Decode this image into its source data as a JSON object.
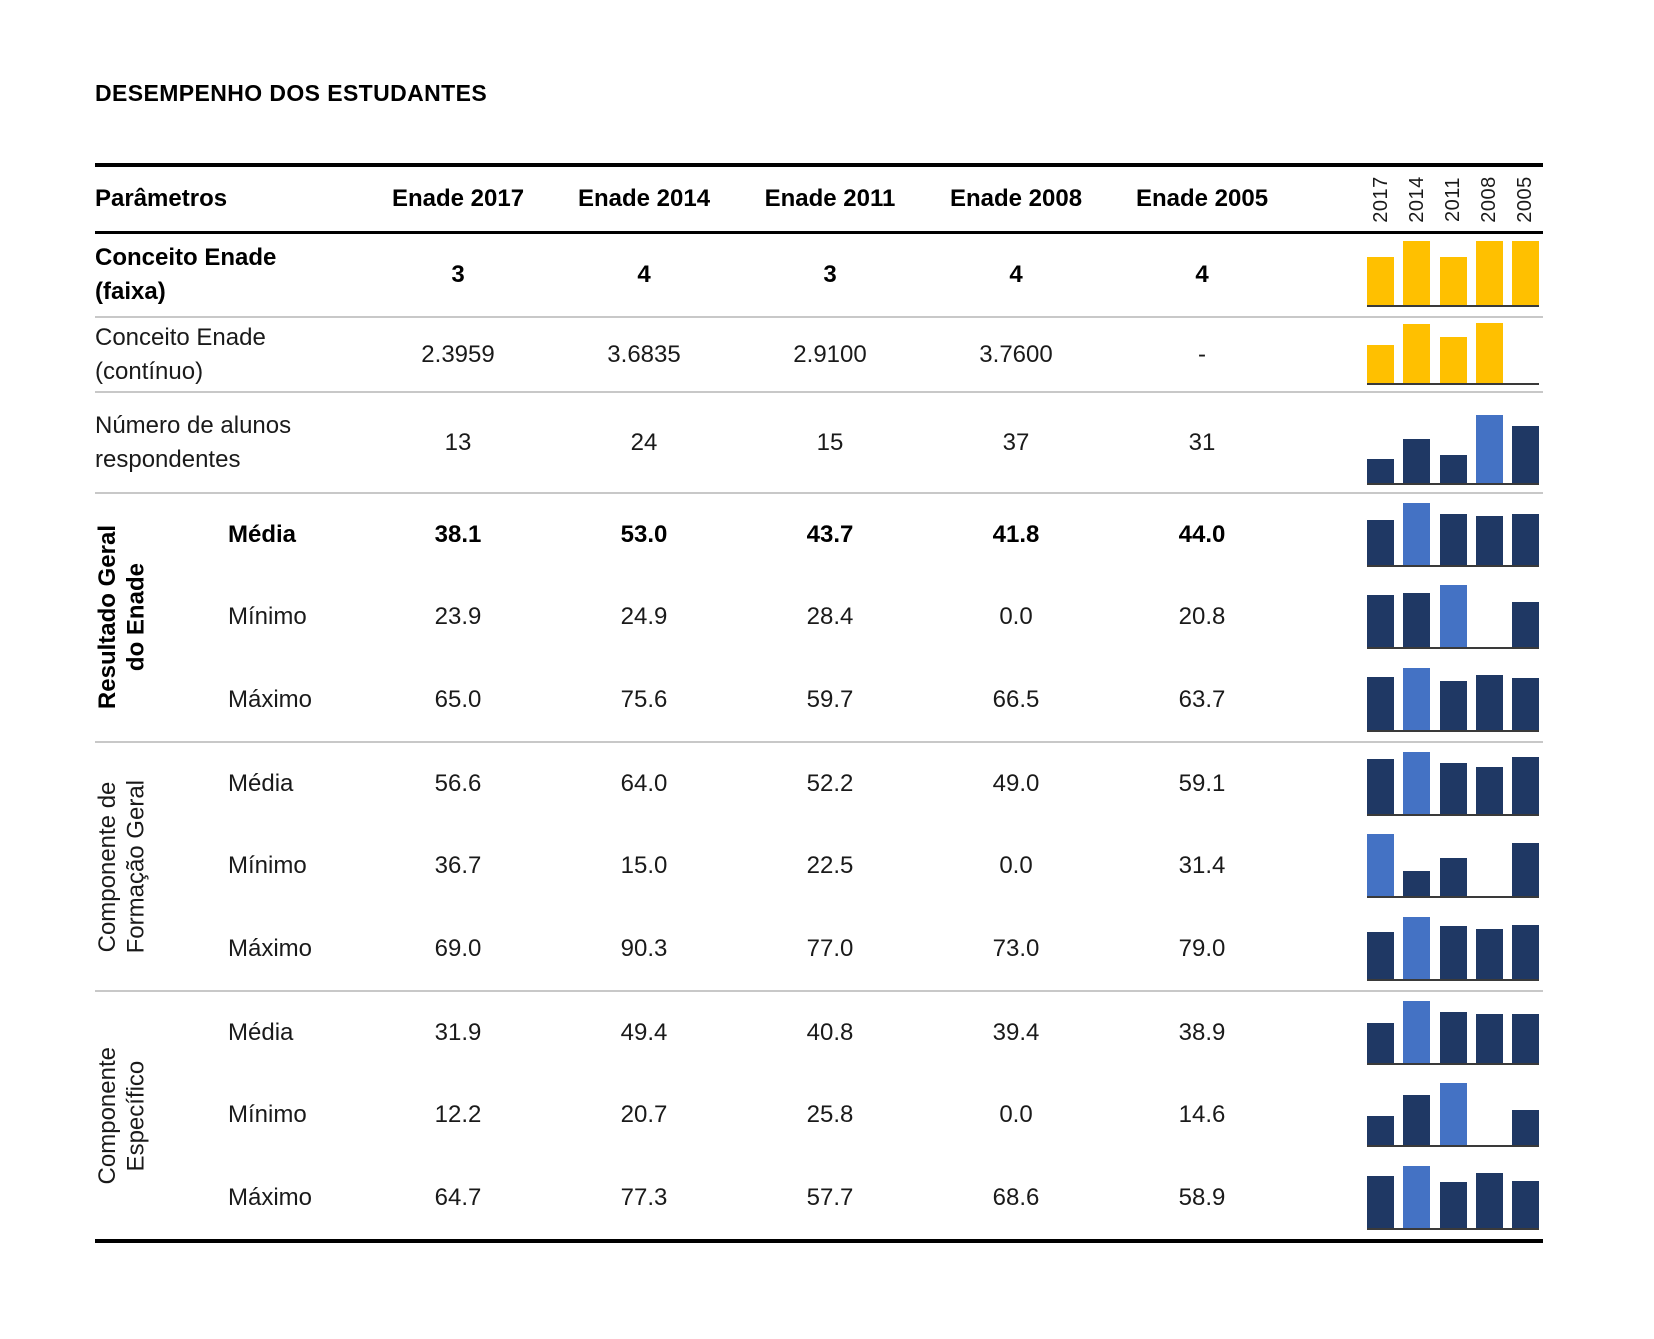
{
  "page_title": "DESEMPENHO DOS ESTUDANTES",
  "colors": {
    "gold": "#FFC000",
    "navy": "#1F3864",
    "highlight": "#4472C4",
    "axis": "#3a3a3a"
  },
  "header": {
    "params_label": "Parâmetros",
    "columns": [
      "Enade 2017",
      "Enade 2014",
      "Enade 2011",
      "Enade 2008",
      "Enade 2005"
    ],
    "spark_years": [
      "2017",
      "2014",
      "2011",
      "2008",
      "2005"
    ]
  },
  "rows": {
    "faixa": {
      "label": "Conceito Enade\n(faixa)",
      "values": [
        "3",
        "4",
        "3",
        "4",
        "4"
      ],
      "spark": {
        "values": [
          3,
          4,
          3,
          4,
          4
        ],
        "scheme": "gold"
      }
    },
    "continuo": {
      "label": "Conceito Enade\n(contínuo)",
      "values": [
        "2.3959",
        "3.6835",
        "2.9100",
        "3.7600",
        "-"
      ],
      "spark": {
        "values": [
          2.3959,
          3.6835,
          2.91,
          3.76,
          null
        ],
        "scheme": "gold"
      }
    },
    "alunos": {
      "label": "Número de alunos\nrespondentes",
      "values": [
        "13",
        "24",
        "15",
        "37",
        "31"
      ],
      "spark": {
        "values": [
          13,
          24,
          15,
          37,
          31
        ],
        "scheme": "navy"
      }
    }
  },
  "groups": [
    {
      "label": "Resultado Geral\ndo Enade",
      "rows": [
        {
          "label": "Média",
          "values": [
            "38.1",
            "53.0",
            "43.7",
            "41.8",
            "44.0"
          ],
          "spark": {
            "values": [
              38.1,
              53.0,
              43.7,
              41.8,
              44.0
            ],
            "scheme": "navy"
          }
        },
        {
          "label": "Mínimo",
          "values": [
            "23.9",
            "24.9",
            "28.4",
            "0.0",
            "20.8"
          ],
          "spark": {
            "values": [
              23.9,
              24.9,
              28.4,
              0,
              20.8
            ],
            "scheme": "navy"
          }
        },
        {
          "label": "Máximo",
          "values": [
            "65.0",
            "75.6",
            "59.7",
            "66.5",
            "63.7"
          ],
          "spark": {
            "values": [
              65.0,
              75.6,
              59.7,
              66.5,
              63.7
            ],
            "scheme": "navy"
          }
        }
      ]
    },
    {
      "label": "Componente de\nFormação Geral",
      "rows": [
        {
          "label": "Média",
          "values": [
            "56.6",
            "64.0",
            "52.2",
            "49.0",
            "59.1"
          ],
          "spark": {
            "values": [
              56.6,
              64.0,
              52.2,
              49.0,
              59.1
            ],
            "scheme": "navy"
          }
        },
        {
          "label": "Mínimo",
          "values": [
            "36.7",
            "15.0",
            "22.5",
            "0.0",
            "31.4"
          ],
          "spark": {
            "values": [
              36.7,
              15.0,
              22.5,
              0,
              31.4
            ],
            "scheme": "navy"
          }
        },
        {
          "label": "Máximo",
          "values": [
            "69.0",
            "90.3",
            "77.0",
            "73.0",
            "79.0"
          ],
          "spark": {
            "values": [
              69.0,
              90.3,
              77.0,
              73.0,
              79.0
            ],
            "scheme": "navy"
          }
        }
      ]
    },
    {
      "label": "Componente\nEspecífico",
      "rows": [
        {
          "label": "Média",
          "values": [
            "31.9",
            "49.4",
            "40.8",
            "39.4",
            "38.9"
          ],
          "spark": {
            "values": [
              31.9,
              49.4,
              40.8,
              39.4,
              38.9
            ],
            "scheme": "navy"
          }
        },
        {
          "label": "Mínimo",
          "values": [
            "12.2",
            "20.7",
            "25.8",
            "0.0",
            "14.6"
          ],
          "spark": {
            "values": [
              12.2,
              20.7,
              25.8,
              0,
              14.6
            ],
            "scheme": "navy"
          }
        },
        {
          "label": "Máximo",
          "values": [
            "64.7",
            "77.3",
            "57.7",
            "68.6",
            "58.9"
          ],
          "spark": {
            "values": [
              64.7,
              77.3,
              57.7,
              68.6,
              58.9
            ],
            "scheme": "navy"
          }
        }
      ]
    }
  ],
  "chart_data": {
    "type": "table",
    "title": "DESEMPENHO DOS ESTUDANTES",
    "columns": [
      "Parâmetros",
      "Enade 2017",
      "Enade 2014",
      "Enade 2011",
      "Enade 2008",
      "Enade 2005"
    ],
    "rows": [
      [
        "Conceito Enade (faixa)",
        3,
        4,
        3,
        4,
        4
      ],
      [
        "Conceito Enade (contínuo)",
        2.3959,
        3.6835,
        2.91,
        3.76,
        null
      ],
      [
        "Número de alunos respondentes",
        13,
        24,
        15,
        37,
        31
      ],
      [
        "Resultado Geral do Enade — Média",
        38.1,
        53.0,
        43.7,
        41.8,
        44.0
      ],
      [
        "Resultado Geral do Enade — Mínimo",
        23.9,
        24.9,
        28.4,
        0.0,
        20.8
      ],
      [
        "Resultado Geral do Enade — Máximo",
        65.0,
        75.6,
        59.7,
        66.5,
        63.7
      ],
      [
        "Componente de Formação Geral — Média",
        56.6,
        64.0,
        52.2,
        49.0,
        59.1
      ],
      [
        "Componente de Formação Geral — Mínimo",
        36.7,
        15.0,
        22.5,
        0.0,
        31.4
      ],
      [
        "Componente de Formação Geral — Máximo",
        69.0,
        90.3,
        77.0,
        73.0,
        79.0
      ],
      [
        "Componente Específico — Média",
        31.9,
        49.4,
        40.8,
        39.4,
        38.9
      ],
      [
        "Componente Específico — Mínimo",
        12.2,
        20.7,
        25.8,
        0.0,
        14.6
      ],
      [
        "Componente Específico — Máximo",
        64.7,
        77.3,
        57.7,
        68.6,
        58.9
      ]
    ],
    "sparklines": "each row has a 5-bar sparkline (2017,2014,2011,2008,2005), bars scaled from zero to row max; Conceito rows gold #FFC000, other rows navy #1F3864 with row maximum highlighted #4472C4; zero/missing values draw no bar"
  }
}
